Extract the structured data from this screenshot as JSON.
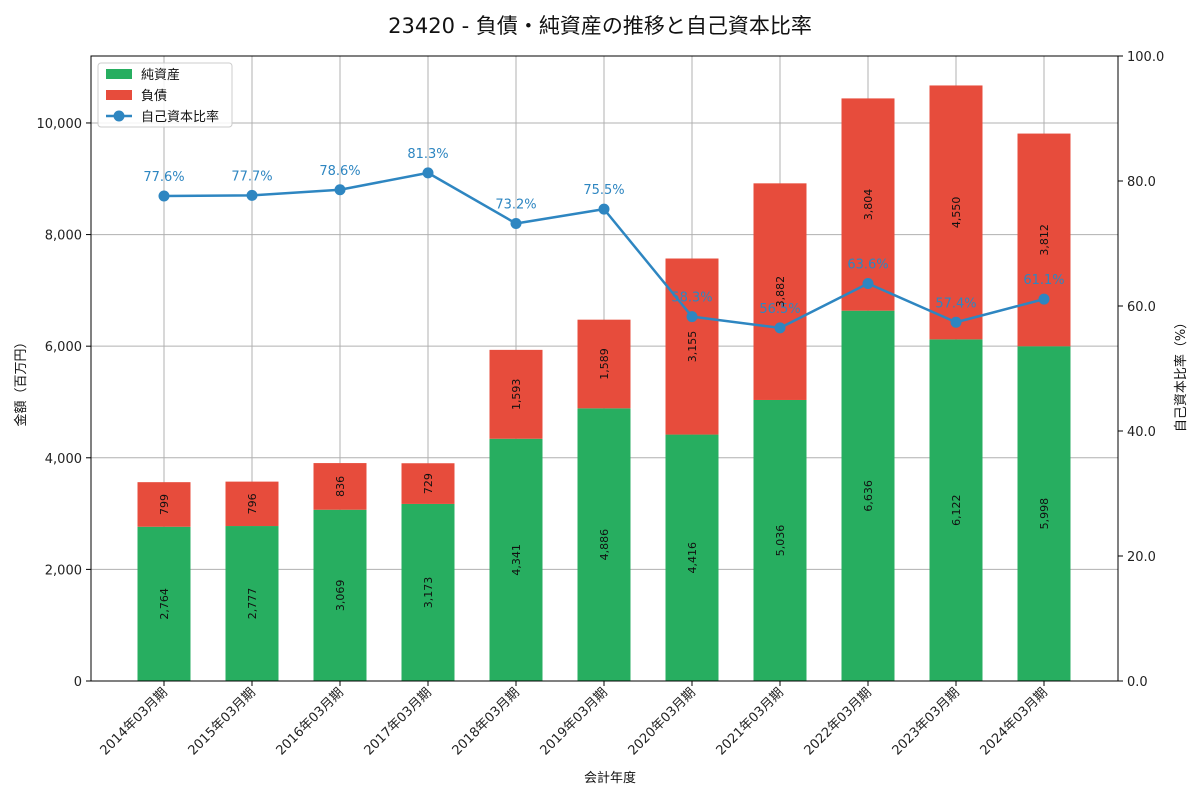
{
  "chart_data": {
    "type": "bar",
    "stacked": true,
    "title": "23420 - 負債・純資産の推移と自己資本比率",
    "xlabel": "会計年度",
    "ylabel": "金額（百万円）",
    "ylabel_right": "自己資本比率（%）",
    "ylim": [
      0,
      11200
    ],
    "ylim_right": [
      0,
      100
    ],
    "y_ticks": [
      0,
      2000,
      4000,
      6000,
      8000,
      10000
    ],
    "y_tick_labels": [
      "0",
      "2,000",
      "4,000",
      "6,000",
      "8,000",
      "10,000"
    ],
    "y_right_ticks": [
      0,
      20,
      40,
      60,
      80,
      100
    ],
    "y_right_tick_labels": [
      "0.0",
      "20.0",
      "40.0",
      "60.0",
      "80.0",
      "100.0"
    ],
    "grid": true,
    "legend_position": "top-left",
    "categories": [
      "2014年03月期",
      "2015年03月期",
      "2016年03月期",
      "2017年03月期",
      "2018年03月期",
      "2019年03月期",
      "2020年03月期",
      "2021年03月期",
      "2022年03月期",
      "2023年03月期",
      "2024年03月期"
    ],
    "series": [
      {
        "name": "純資産",
        "kind": "bar",
        "color": "#27ae60",
        "values": [
          2764,
          2777,
          3069,
          3173,
          4341,
          4886,
          4416,
          5036,
          6636,
          6122,
          5998
        ],
        "labels": [
          "2,764",
          "2,777",
          "3,069",
          "3,173",
          "4,341",
          "4,886",
          "4,416",
          "5,036",
          "6,636",
          "6,122",
          "5,998"
        ]
      },
      {
        "name": "負債",
        "kind": "bar",
        "color": "#e74c3c",
        "values": [
          799,
          796,
          836,
          729,
          1593,
          1589,
          3155,
          3882,
          3804,
          4550,
          3812
        ],
        "labels": [
          "799",
          "796",
          "836",
          "729",
          "1,593",
          "1,589",
          "3,155",
          "3,882",
          "3,804",
          "4,550",
          "3,812"
        ]
      },
      {
        "name": "自己資本比率",
        "kind": "line",
        "axis": "right",
        "color": "#2e86c1",
        "values": [
          77.6,
          77.7,
          78.6,
          81.3,
          73.2,
          75.5,
          58.3,
          56.5,
          63.6,
          57.4,
          61.1
        ],
        "labels": [
          "77.6%",
          "77.7%",
          "78.6%",
          "81.3%",
          "73.2%",
          "75.5%",
          "58.3%",
          "56.5%",
          "63.6%",
          "57.4%",
          "61.1%"
        ]
      }
    ]
  }
}
